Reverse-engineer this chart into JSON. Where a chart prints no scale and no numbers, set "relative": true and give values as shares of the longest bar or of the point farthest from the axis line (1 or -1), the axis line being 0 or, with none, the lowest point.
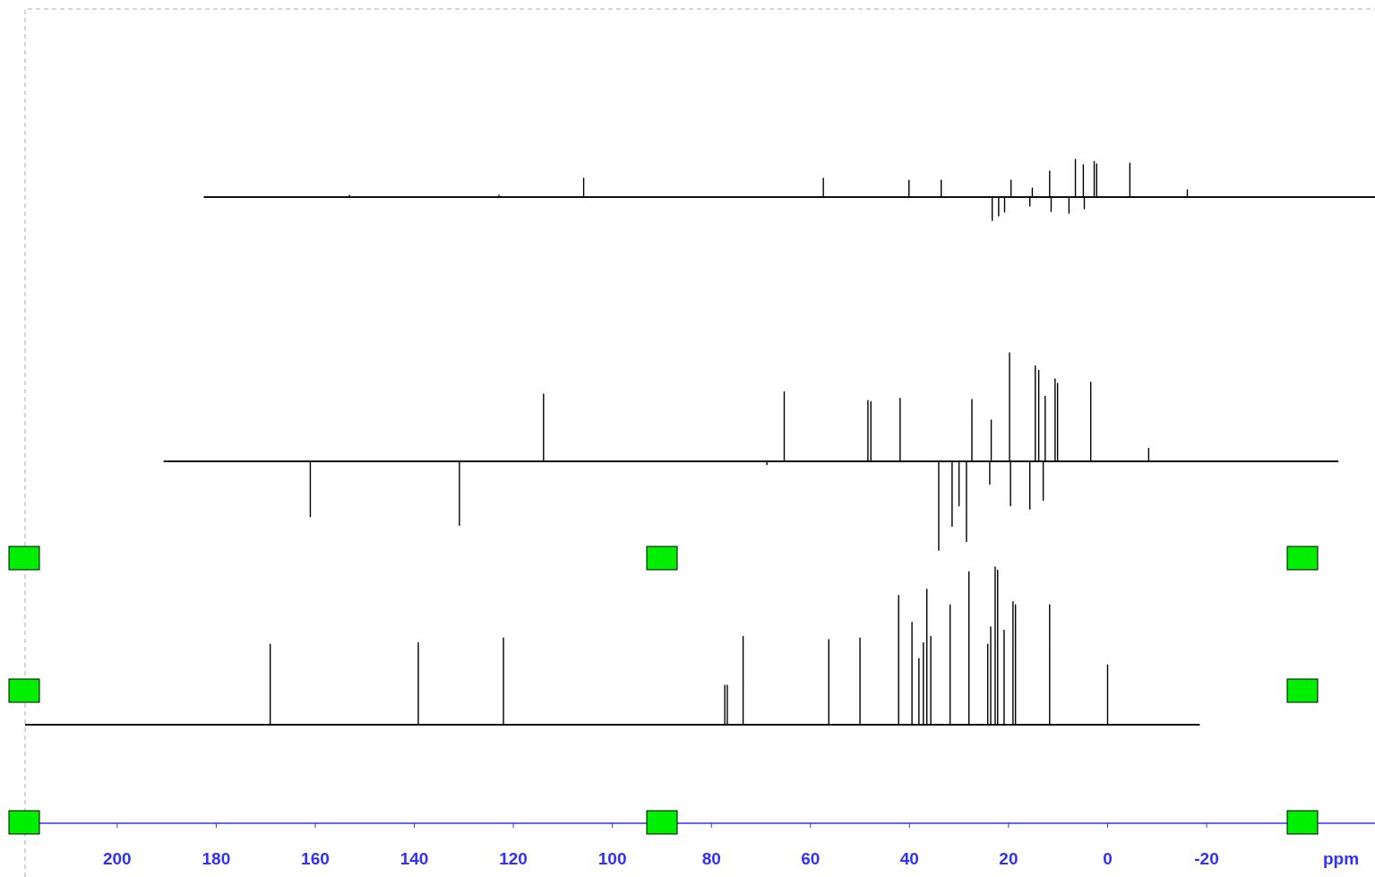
{
  "chart_data": [
    {
      "type": "line",
      "relative": true,
      "xlim": [
        218.6,
        -54
      ],
      "tick_labels": false,
      "series": [
        {
          "color": "#000000",
          "x": [
            182.5,
            153.1,
            153.1,
            153.1,
            122.9,
            122.9,
            122.9,
            105.8,
            105.8,
            105.8,
            57.4,
            57.4,
            57.4,
            40.1,
            40.1,
            40.1,
            33.6,
            33.6,
            33.6,
            23.3,
            23.3,
            23.3,
            22.0,
            22.0,
            22.0,
            20.8,
            20.8,
            20.8,
            19.5,
            19.5,
            19.5,
            15.7,
            15.7,
            15.7,
            15.2,
            15.2,
            15.2,
            11.7,
            11.7,
            11.7,
            11.4,
            11.4,
            11.4,
            7.8,
            7.8,
            7.8,
            6.5,
            6.5,
            6.5,
            4.9,
            4.9,
            4.9,
            4.7,
            4.7,
            4.7,
            2.7,
            2.7,
            2.7,
            2.2,
            2.2,
            2.2,
            -4.5,
            -4.5,
            -4.5,
            -16.1,
            -16.1,
            -16.1,
            -54
          ],
          "values": [
            0,
            0,
            0.05,
            0,
            0,
            0.05,
            0,
            0,
            0.5,
            0,
            0,
            0.5,
            0,
            0,
            0.45,
            0,
            0,
            0.45,
            0,
            0,
            -0.62,
            0,
            0,
            -0.5,
            0,
            0,
            -0.4,
            0,
            0,
            0.45,
            0,
            0,
            -0.24,
            0,
            0,
            0.24,
            0,
            0,
            0.69,
            0,
            0,
            -0.38,
            0,
            0,
            -0.43,
            0,
            0,
            1,
            0,
            0,
            0.86,
            0,
            0,
            -0.31,
            0,
            0,
            0.95,
            0,
            0,
            0.88,
            0,
            0,
            0.9,
            0,
            0,
            0.19,
            0,
            0
          ]
        }
      ]
    },
    {
      "type": "line",
      "relative": true,
      "xlim": [
        218.6,
        -54
      ],
      "tick_labels": false,
      "series": [
        {
          "color": "#000000",
          "x": [
            190.6,
            161.0,
            161.0,
            161.0,
            130.9,
            130.9,
            130.9,
            113.9,
            113.9,
            113.9,
            68.8,
            68.8,
            68.8,
            65.3,
            65.3,
            65.3,
            48.4,
            48.4,
            48.4,
            47.8,
            47.8,
            47.8,
            41.9,
            41.9,
            41.9,
            34.1,
            34.1,
            34.1,
            31.4,
            31.4,
            31.4,
            30.0,
            30.0,
            30.0,
            28.5,
            28.5,
            28.5,
            27.4,
            27.4,
            27.4,
            23.8,
            23.8,
            23.8,
            23.5,
            23.5,
            23.5,
            19.8,
            19.8,
            19.8,
            19.6,
            19.6,
            19.6,
            15.7,
            15.7,
            15.7,
            14.6,
            14.6,
            14.6,
            13.9,
            13.9,
            13.9,
            13.0,
            13.0,
            13.0,
            12.6,
            12.6,
            12.6,
            10.6,
            10.6,
            10.6,
            10.1,
            10.1,
            10.1,
            3.4,
            3.4,
            3.4,
            -8.3,
            -8.3,
            -8.3,
            -46.6
          ],
          "values": [
            0,
            0,
            -0.51,
            0,
            0,
            -0.59,
            0,
            0,
            0.62,
            0,
            0,
            -0.03,
            0,
            0,
            0.64,
            0,
            0,
            0.56,
            0,
            0,
            0.55,
            0,
            0,
            0.58,
            0,
            0,
            -0.82,
            0,
            0,
            -0.6,
            0,
            0,
            -0.41,
            0,
            0,
            -0.74,
            0,
            0,
            0.57,
            0,
            0,
            -0.21,
            0,
            0,
            0.38,
            0,
            0,
            1,
            0,
            0,
            -0.41,
            0,
            0,
            -0.44,
            0,
            0,
            0.88,
            0,
            0,
            0.84,
            0,
            0,
            -0.36,
            0,
            0,
            0.6,
            0,
            0,
            0.76,
            0,
            0,
            0.72,
            0,
            0,
            0.73,
            0,
            0,
            0.12,
            0,
            0
          ]
        }
      ]
    },
    {
      "type": "line",
      "relative": true,
      "xlim": [
        218.6,
        -54
      ],
      "xlabel": "ppm",
      "xticks": [
        200,
        180,
        160,
        140,
        120,
        100,
        80,
        60,
        40,
        20,
        0,
        -20
      ],
      "series": [
        {
          "color": "#000000",
          "x": [
            218.6,
            169.1,
            169.1,
            169.1,
            139.2,
            139.2,
            139.2,
            122.0,
            122.0,
            122.0,
            77.3,
            77.3,
            77.3,
            76.8,
            76.8,
            76.8,
            73.6,
            73.6,
            73.6,
            56.3,
            56.3,
            56.3,
            50.0,
            50.0,
            50.0,
            42.2,
            42.2,
            42.2,
            39.5,
            39.5,
            39.5,
            38.1,
            38.1,
            38.1,
            37.2,
            37.2,
            37.2,
            36.5,
            36.5,
            36.5,
            35.7,
            35.7,
            35.7,
            31.8,
            31.8,
            31.8,
            28.0,
            28.0,
            28.0,
            24.2,
            24.2,
            24.2,
            23.6,
            23.6,
            23.6,
            22.7,
            22.7,
            22.7,
            22.2,
            22.2,
            22.2,
            20.9,
            20.9,
            20.9,
            19.1,
            19.1,
            19.1,
            18.6,
            18.6,
            18.6,
            11.7,
            11.7,
            11.7,
            0.0,
            0.0,
            0.0,
            -18.6
          ],
          "values": [
            0,
            0,
            0.51,
            0,
            0,
            0.52,
            0,
            0,
            0.55,
            0,
            0,
            0.25,
            0,
            0,
            0.25,
            0,
            0,
            0.56,
            0,
            0,
            0.54,
            0,
            0,
            0.55,
            0,
            0,
            0.82,
            0,
            0,
            0.65,
            0,
            0,
            0.42,
            0,
            0,
            0.52,
            0,
            0,
            0.86,
            0,
            0,
            0.56,
            0,
            0,
            0.76,
            0,
            0,
            0.97,
            0,
            0,
            0.51,
            0,
            0,
            0.62,
            0,
            0,
            1,
            0,
            0,
            0.98,
            0,
            0,
            0.6,
            0,
            0,
            0.78,
            0,
            0,
            0.76,
            0,
            0,
            0.76,
            0,
            0,
            0.38,
            0,
            0
          ]
        }
      ]
    }
  ]
}
